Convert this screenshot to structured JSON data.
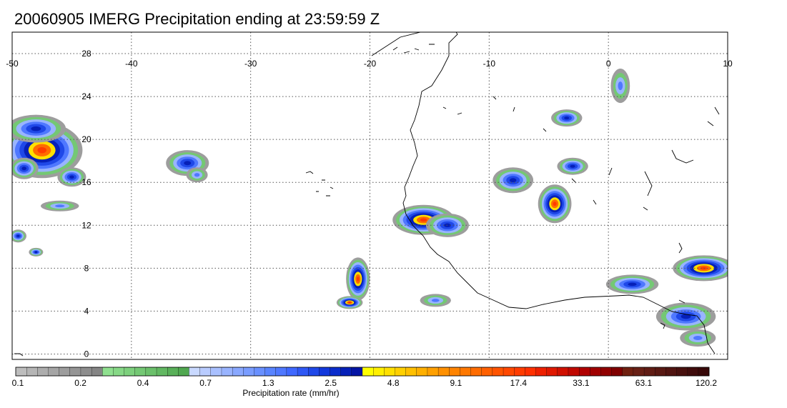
{
  "title": "20060905 IMERG Precipitation ending at 23:59:59 Z",
  "lon_ticks": [
    "-50",
    "-40",
    "-30",
    "-20",
    "-10",
    "0",
    "10"
  ],
  "lat_ticks": [
    "28",
    "24",
    "20",
    "16",
    "12",
    "8",
    "4",
    "0"
  ],
  "map_extent": {
    "lon_min": -50,
    "lon_max": 10,
    "lat_min": -0.5,
    "lat_max": 30
  },
  "colorbar": {
    "label": "Precipitation rate (mm/hr)",
    "tick_labels": [
      "0.1",
      "0.2",
      "0.4",
      "0.7",
      "1.3",
      "2.5",
      "4.8",
      "9.1",
      "17.4",
      "33.1",
      "63.1",
      "120.2"
    ],
    "colors": [
      "#bdbdbd",
      "#b5b5b5",
      "#adadad",
      "#a5a5a5",
      "#9d9d9d",
      "#959595",
      "#8d8d8d",
      "#858585",
      "#8fe08f",
      "#86d886",
      "#7dd07d",
      "#74c874",
      "#6bc06b",
      "#62b862",
      "#59b059",
      "#50a850",
      "#c9d9ff",
      "#b9ccff",
      "#a9c0ff",
      "#99b4ff",
      "#89a8ff",
      "#799cff",
      "#6990ff",
      "#5984ff",
      "#4f78ff",
      "#3f68ff",
      "#2f58f5",
      "#1f48e8",
      "#1238dc",
      "#0a2ccc",
      "#0620b8",
      "#0414a4",
      "#ffff00",
      "#fff000",
      "#ffe000",
      "#ffd000",
      "#ffc000",
      "#ffb000",
      "#ffa000",
      "#ff9000",
      "#ff8400",
      "#ff7800",
      "#ff6c00",
      "#ff6000",
      "#ff5400",
      "#ff4800",
      "#ff3c00",
      "#ff3000",
      "#ee2000",
      "#e01800",
      "#d01000",
      "#c00800",
      "#b00000",
      "#a00000",
      "#900000",
      "#800000",
      "#702010",
      "#682015",
      "#601c14",
      "#581812",
      "#501410",
      "#48100e",
      "#400c0c",
      "#380808"
    ]
  },
  "precip_cells": [
    {
      "lon": -47.5,
      "lat": 19.0,
      "rx": 3.4,
      "ry": 2.6,
      "peak": "high"
    },
    {
      "lon": -49.0,
      "lat": 17.3,
      "rx": 1.2,
      "ry": 1.0,
      "peak": "med"
    },
    {
      "lon": -48.0,
      "lat": 21.0,
      "rx": 2.5,
      "ry": 1.3,
      "peak": "med"
    },
    {
      "lon": -45.0,
      "lat": 16.5,
      "rx": 1.2,
      "ry": 0.9,
      "peak": "med"
    },
    {
      "lon": -35.3,
      "lat": 17.8,
      "rx": 1.8,
      "ry": 1.2,
      "peak": "med"
    },
    {
      "lon": -34.5,
      "lat": 16.7,
      "rx": 0.9,
      "ry": 0.7,
      "peak": "low"
    },
    {
      "lon": -46.0,
      "lat": 13.8,
      "rx": 1.6,
      "ry": 0.5,
      "peak": "low"
    },
    {
      "lon": -49.5,
      "lat": 11.0,
      "rx": 0.7,
      "ry": 0.6,
      "peak": "med"
    },
    {
      "lon": -48.0,
      "lat": 9.5,
      "rx": 0.6,
      "ry": 0.4,
      "peak": "med"
    },
    {
      "lon": -21.0,
      "lat": 7.0,
      "rx": 1.0,
      "ry": 2.0,
      "peak": "high"
    },
    {
      "lon": -21.7,
      "lat": 4.8,
      "rx": 1.1,
      "ry": 0.6,
      "peak": "high"
    },
    {
      "lon": -15.5,
      "lat": 12.5,
      "rx": 2.6,
      "ry": 1.4,
      "peak": "high"
    },
    {
      "lon": -13.5,
      "lat": 12.0,
      "rx": 1.8,
      "ry": 1.1,
      "peak": "med"
    },
    {
      "lon": -8.0,
      "lat": 16.2,
      "rx": 1.7,
      "ry": 1.2,
      "peak": "med"
    },
    {
      "lon": -4.5,
      "lat": 14.0,
      "rx": 1.4,
      "ry": 1.8,
      "peak": "high"
    },
    {
      "lon": -3.0,
      "lat": 17.5,
      "rx": 1.3,
      "ry": 0.8,
      "peak": "med"
    },
    {
      "lon": -3.5,
      "lat": 22.0,
      "rx": 1.3,
      "ry": 0.8,
      "peak": "med"
    },
    {
      "lon": -14.5,
      "lat": 5.0,
      "rx": 1.3,
      "ry": 0.6,
      "peak": "low"
    },
    {
      "lon": 2.0,
      "lat": 6.5,
      "rx": 2.2,
      "ry": 0.9,
      "peak": "med"
    },
    {
      "lon": 8.0,
      "lat": 8.0,
      "rx": 2.6,
      "ry": 1.2,
      "peak": "high"
    },
    {
      "lon": 6.5,
      "lat": 3.5,
      "rx": 2.5,
      "ry": 1.3,
      "peak": "med"
    },
    {
      "lon": 7.5,
      "lat": 1.5,
      "rx": 1.5,
      "ry": 0.8,
      "peak": "low"
    },
    {
      "lon": 1.0,
      "lat": 25.0,
      "rx": 0.8,
      "ry": 1.6,
      "peak": "low"
    }
  ]
}
